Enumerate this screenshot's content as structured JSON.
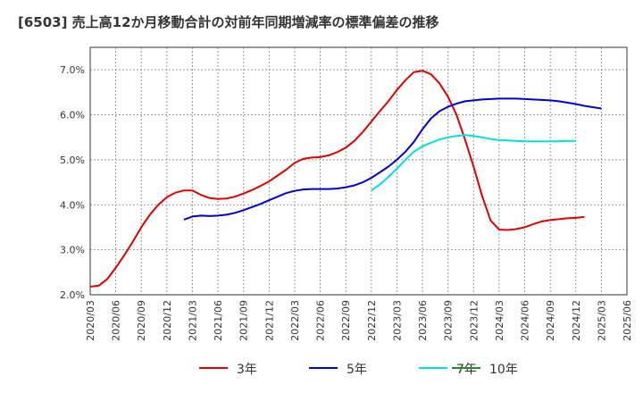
{
  "chart_data": {
    "type": "line",
    "title": "[6503]  売上高12か月移動合計の対前年同期増減率の標準偏差の推移",
    "xlabel": "",
    "ylabel": "",
    "ylim": [
      2.0,
      7.5
    ],
    "yticks": [
      2.0,
      3.0,
      4.0,
      5.0,
      6.0,
      7.0
    ],
    "ytick_labels": [
      "2.0%",
      "3.0%",
      "4.0%",
      "5.0%",
      "6.0%",
      "7.0%"
    ],
    "xticks": [
      "2020/03",
      "2020/06",
      "2020/09",
      "2020/12",
      "2021/03",
      "2021/06",
      "2021/09",
      "2021/12",
      "2022/03",
      "2022/06",
      "2022/09",
      "2022/12",
      "2023/03",
      "2023/06",
      "2023/09",
      "2023/12",
      "2024/03",
      "2024/06",
      "2024/09",
      "2024/12",
      "2025/03",
      "2025/06"
    ],
    "grid": true,
    "legend_position": "bottom",
    "series": [
      {
        "name": "3年",
        "color": "#e00000",
        "start": "2020/03",
        "values": [
          2.18,
          2.2,
          2.35,
          2.6,
          2.88,
          3.18,
          3.5,
          3.78,
          4.0,
          4.17,
          4.27,
          4.32,
          4.32,
          4.22,
          4.15,
          4.13,
          4.14,
          4.18,
          4.25,
          4.33,
          4.42,
          4.52,
          4.65,
          4.78,
          4.93,
          5.02,
          5.05,
          5.06,
          5.1,
          5.17,
          5.27,
          5.42,
          5.62,
          5.85,
          6.08,
          6.3,
          6.55,
          6.77,
          6.95,
          6.98,
          6.9,
          6.7,
          6.4,
          6.0,
          5.45,
          4.85,
          4.2,
          3.65,
          3.45,
          3.44,
          3.46,
          3.5,
          3.57,
          3.63,
          3.66,
          3.68,
          3.7,
          3.71,
          3.73
        ]
      },
      {
        "name": "5年",
        "color": "#0000cc",
        "start": "2021/02",
        "values": [
          3.67,
          3.74,
          3.76,
          3.75,
          3.76,
          3.78,
          3.82,
          3.88,
          3.95,
          4.02,
          4.1,
          4.18,
          4.26,
          4.31,
          4.34,
          4.35,
          4.35,
          4.35,
          4.36,
          4.39,
          4.43,
          4.5,
          4.6,
          4.72,
          4.85,
          5.0,
          5.18,
          5.4,
          5.68,
          5.92,
          6.08,
          6.18,
          6.25,
          6.3,
          6.32,
          6.34,
          6.35,
          6.36,
          6.36,
          6.36,
          6.35,
          6.34,
          6.33,
          6.32,
          6.3,
          6.27,
          6.24,
          6.2,
          6.17,
          6.14
        ]
      },
      {
        "name": "7年",
        "color": "#00e0e0",
        "start": "2022/12",
        "values": [
          4.32,
          4.45,
          4.62,
          4.8,
          5.0,
          5.18,
          5.3,
          5.38,
          5.45,
          5.5,
          5.53,
          5.55,
          5.53,
          5.5,
          5.46,
          5.44,
          5.43,
          5.42,
          5.41,
          5.41,
          5.41,
          5.41,
          5.41,
          5.42,
          5.42
        ]
      },
      {
        "name": "10年",
        "color": "#228b22",
        "start": "",
        "values": []
      }
    ]
  }
}
